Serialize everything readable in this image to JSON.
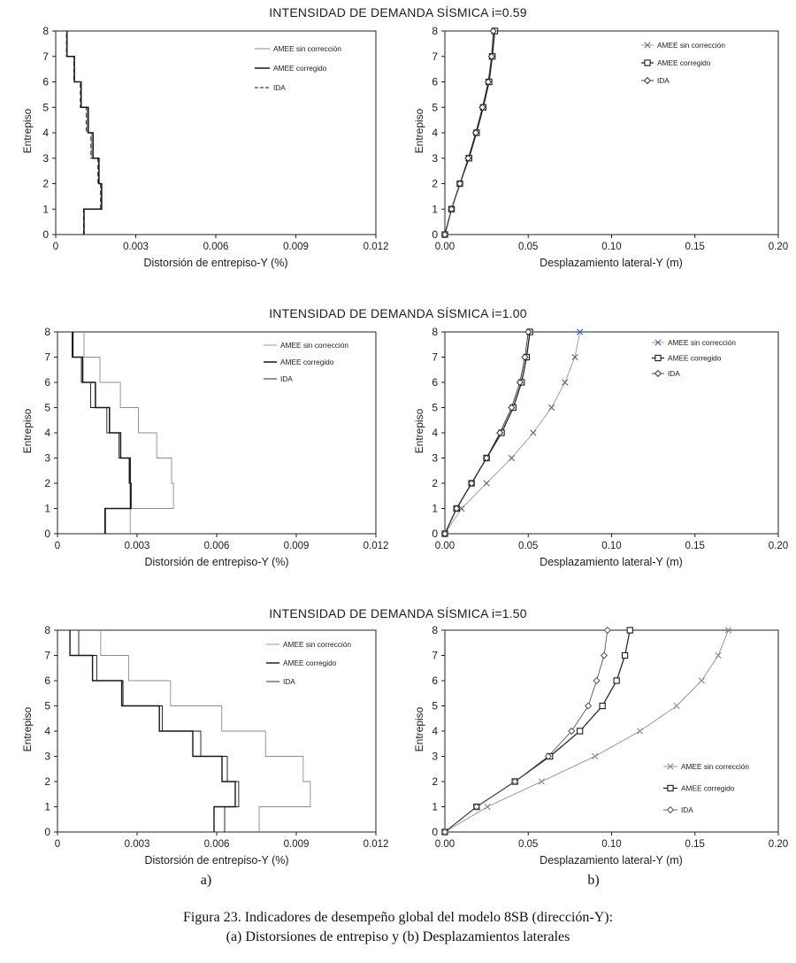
{
  "figure": {
    "panel_a_label": "a)",
    "panel_b_label": "b)",
    "caption_line1": "Figura 23. Indicadores de desempeño global del modelo 8SB (dirección-Y):",
    "caption_line2": "(a) Distorsiones de entrepiso y (b) Desplazamientos laterales"
  },
  "colors": {
    "axis": "#222222",
    "tick_text": "#1c1c1c",
    "gray_series": "#8c8c8c",
    "black_series": "#1a1a1a",
    "blue_marker": "#4a6e9e"
  },
  "chart_data": [
    {
      "id": "drift-i059",
      "type": "line",
      "variant": "step",
      "panel": "a",
      "title": "INTENSIDAD DE DEMANDA SÍSMICA i=0.59",
      "xlabel": "Distorsión de entrepiso-Y (%)",
      "ylabel": "Entrepiso",
      "xlim": [
        0,
        0.012
      ],
      "ylim": [
        0,
        8
      ],
      "xtick_values": [
        0,
        0.003,
        0.006,
        0.009,
        0.012
      ],
      "xtick_labels": [
        "0",
        "0.003",
        "0.006",
        "0.009",
        "0.012"
      ],
      "ytick_values": [
        0,
        1,
        2,
        3,
        4,
        5,
        6,
        7,
        8
      ],
      "ytick_labels": [
        "0",
        "1",
        "2",
        "3",
        "4",
        "5",
        "6",
        "7",
        "8"
      ],
      "grid": false,
      "legend_position": "upper-right",
      "levels": [
        1,
        2,
        3,
        4,
        5,
        6,
        7,
        8
      ],
      "series": [
        {
          "name": "AMEE sin corrección",
          "color": "#8c8c8c",
          "line_width": 0.9,
          "dash": null,
          "marker": null,
          "values": [
            0.00106,
            0.0017,
            0.0016,
            0.00135,
            0.00118,
            0.00095,
            0.0007,
            0.00042
          ]
        },
        {
          "name": "AMEE corregido",
          "color": "#161616",
          "line_width": 1.5,
          "dash": null,
          "marker": null,
          "values": [
            0.00106,
            0.00172,
            0.00162,
            0.0014,
            0.00122,
            0.00095,
            0.0007,
            0.00042
          ]
        },
        {
          "name": "IDA",
          "color": "#161616",
          "line_width": 0.9,
          "dash": "5,3",
          "marker": null,
          "values": [
            0.00104,
            0.00168,
            0.00158,
            0.00132,
            0.00114,
            0.00092,
            0.00068,
            0.0004
          ]
        }
      ]
    },
    {
      "id": "disp-i059",
      "type": "line",
      "variant": "markers",
      "panel": "b",
      "title": "INTENSIDAD DE DEMANDA SÍSMICA i=0.59",
      "xlabel": "Desplazamiento lateral-Y (m)",
      "ylabel": "Entrepiso",
      "xlim": [
        0,
        0.2
      ],
      "ylim": [
        0,
        8
      ],
      "xtick_values": [
        0,
        0.05,
        0.1,
        0.15,
        0.2
      ],
      "xtick_labels": [
        "0.00",
        "0.05",
        "0.10",
        "0.15",
        "0.20"
      ],
      "ytick_values": [
        0,
        1,
        2,
        3,
        4,
        5,
        6,
        7,
        8
      ],
      "ytick_labels": [
        "0",
        "1",
        "2",
        "3",
        "4",
        "5",
        "6",
        "7",
        "8"
      ],
      "grid": false,
      "legend_position": "upper-right",
      "levels": [
        0,
        1,
        2,
        3,
        4,
        5,
        6,
        7,
        8
      ],
      "series": [
        {
          "name": "AMEE sin corrección",
          "color": "#999999",
          "line_width": 0.9,
          "dash": null,
          "marker": "x",
          "marker_color": "#777777",
          "values": [
            0,
            0.004,
            0.009,
            0.014,
            0.019,
            0.023,
            0.026,
            0.028,
            0.0295
          ]
        },
        {
          "name": "AMEE corregido",
          "color": "#1a1a1a",
          "line_width": 1.2,
          "dash": null,
          "marker": "square",
          "marker_color": "#1a1a1a",
          "values": [
            0,
            0.004,
            0.009,
            0.0145,
            0.019,
            0.023,
            0.0265,
            0.0285,
            0.03
          ]
        },
        {
          "name": "IDA",
          "color": "#333333",
          "line_width": 0.9,
          "dash": null,
          "marker": "diamond",
          "marker_color": "#333333",
          "values": [
            0,
            0.004,
            0.009,
            0.014,
            0.0185,
            0.0225,
            0.026,
            0.028,
            0.029
          ]
        }
      ]
    },
    {
      "id": "drift-i100",
      "type": "line",
      "variant": "step",
      "panel": "a",
      "title": "INTENSIDAD DE DEMANDA SÍSMICA i=1.00",
      "xlabel": "Distorsión de entrepiso-Y (%)",
      "ylabel": "Entrepiso",
      "xlim": [
        0,
        0.012
      ],
      "ylim": [
        0,
        8
      ],
      "xtick_values": [
        0,
        0.003,
        0.006,
        0.009,
        0.012
      ],
      "xtick_labels": [
        "0",
        "0.003",
        "0.006",
        "0.009",
        "0.012"
      ],
      "ytick_values": [
        0,
        1,
        2,
        3,
        4,
        5,
        6,
        7,
        8
      ],
      "ytick_labels": [
        "0",
        "1",
        "2",
        "3",
        "4",
        "5",
        "6",
        "7",
        "8"
      ],
      "grid": false,
      "legend_position": "upper-right",
      "levels": [
        1,
        2,
        3,
        4,
        5,
        6,
        7,
        8
      ],
      "series": [
        {
          "name": "AMEE sin corrección",
          "color": "#8c8c8c",
          "line_width": 0.9,
          "dash": null,
          "marker": null,
          "values": [
            0.00274,
            0.00437,
            0.0043,
            0.00374,
            0.00305,
            0.00237,
            0.0016,
            0.001
          ]
        },
        {
          "name": "AMEE corregido",
          "color": "#161616",
          "line_width": 1.5,
          "dash": null,
          "marker": null,
          "values": [
            0.0018,
            0.00277,
            0.00274,
            0.00238,
            0.00196,
            0.00143,
            0.00095,
            0.00058
          ]
        },
        {
          "name": "IDA",
          "color": "#161616",
          "line_width": 0.9,
          "dash": null,
          "marker": null,
          "values": [
            0.00178,
            0.00274,
            0.0027,
            0.00232,
            0.00186,
            0.00125,
            0.0009,
            0.00055
          ]
        }
      ]
    },
    {
      "id": "disp-i100",
      "type": "line",
      "variant": "markers",
      "panel": "b",
      "title": "INTENSIDAD DE DEMANDA SÍSMICA i=1.00",
      "xlabel": "Desplazamiento lateral-Y (m)",
      "ylabel": "Entrepiso",
      "xlim": [
        0,
        0.2
      ],
      "ylim": [
        0,
        8
      ],
      "xtick_values": [
        0,
        0.05,
        0.1,
        0.15,
        0.2
      ],
      "xtick_labels": [
        "0.00",
        "0.05",
        "0.10",
        "0.15",
        "0.20"
      ],
      "ytick_values": [
        0,
        1,
        2,
        3,
        4,
        5,
        6,
        7,
        8
      ],
      "ytick_labels": [
        "0",
        "1",
        "2",
        "3",
        "4",
        "5",
        "6",
        "7",
        "8"
      ],
      "grid": false,
      "legend_position": "upper-right",
      "levels": [
        0,
        1,
        2,
        3,
        4,
        5,
        6,
        7,
        8
      ],
      "series": [
        {
          "name": "AMEE sin corrección",
          "color": "#9a9a9a",
          "line_width": 0.9,
          "dash": null,
          "marker": "x",
          "marker_color": "#4a6e9e",
          "values": [
            0,
            0.01,
            0.025,
            0.04,
            0.053,
            0.064,
            0.072,
            0.078,
            0.081
          ]
        },
        {
          "name": "AMEE corregido",
          "color": "#1a1a1a",
          "line_width": 1.3,
          "dash": null,
          "marker": "square",
          "marker_color": "#1a1a1a",
          "values": [
            0,
            0.007,
            0.016,
            0.025,
            0.034,
            0.041,
            0.046,
            0.049,
            0.051
          ]
        },
        {
          "name": "IDA",
          "color": "#333333",
          "line_width": 0.9,
          "dash": null,
          "marker": "diamond",
          "marker_color": "#333333",
          "values": [
            0,
            0.007,
            0.016,
            0.025,
            0.033,
            0.04,
            0.045,
            0.048,
            0.05
          ]
        }
      ]
    },
    {
      "id": "drift-i150",
      "type": "line",
      "variant": "step",
      "panel": "a",
      "title": "INTENSIDAD DE DEMANDA SÍSMICA i=1.50",
      "xlabel": "Distorsión de entrepiso-Y (%)",
      "ylabel": "Entrepiso",
      "xlim": [
        0,
        0.012
      ],
      "ylim": [
        0,
        8
      ],
      "xtick_values": [
        0,
        0.003,
        0.006,
        0.009,
        0.012
      ],
      "xtick_labels": [
        "0",
        "0.003",
        "0.006",
        "0.009",
        "0.012"
      ],
      "ytick_values": [
        0,
        1,
        2,
        3,
        4,
        5,
        6,
        7,
        8
      ],
      "ytick_labels": [
        "0",
        "1",
        "2",
        "3",
        "4",
        "5",
        "6",
        "7",
        "8"
      ],
      "grid": false,
      "legend_position": "upper-right",
      "levels": [
        1,
        2,
        3,
        4,
        5,
        6,
        7,
        8
      ],
      "series": [
        {
          "name": "AMEE sin corrección",
          "color": "#8c8c8c",
          "line_width": 0.9,
          "dash": null,
          "marker": null,
          "values": [
            0.0076,
            0.00953,
            0.00926,
            0.00784,
            0.00619,
            0.00426,
            0.00268,
            0.00163
          ]
        },
        {
          "name": "AMEE corregido",
          "color": "#161616",
          "line_width": 1.4,
          "dash": null,
          "marker": null,
          "values": [
            0.0059,
            0.0067,
            0.0062,
            0.0051,
            0.00384,
            0.00242,
            0.00132,
            0.00047
          ]
        },
        {
          "name": "IDA",
          "color": "#161616",
          "line_width": 0.9,
          "dash": null,
          "marker": null,
          "values": [
            0.0063,
            0.00683,
            0.0064,
            0.0054,
            0.00395,
            0.00247,
            0.00148,
            0.0008
          ]
        }
      ]
    },
    {
      "id": "disp-i150",
      "type": "line",
      "variant": "markers",
      "panel": "b",
      "title": "INTENSIDAD DE DEMANDA SÍSMICA i=1.50",
      "xlabel": "Desplazamiento lateral-Y (m)",
      "ylabel": "Entrepiso",
      "xlim": [
        0,
        0.2
      ],
      "ylim": [
        0,
        8
      ],
      "xtick_values": [
        0,
        0.05,
        0.1,
        0.15,
        0.2
      ],
      "xtick_labels": [
        "0.00",
        "0.05",
        "0.10",
        "0.15",
        "0.20"
      ],
      "ytick_values": [
        0,
        1,
        2,
        3,
        4,
        5,
        6,
        7,
        8
      ],
      "ytick_labels": [
        "0",
        "1",
        "2",
        "3",
        "4",
        "5",
        "6",
        "7",
        "8"
      ],
      "grid": false,
      "legend_position": "middle-right",
      "levels": [
        0,
        1,
        2,
        3,
        4,
        5,
        6,
        7,
        8
      ],
      "series": [
        {
          "name": "AMEE sin corrección",
          "color": "#8c8c8c",
          "line_width": 0.9,
          "dash": null,
          "marker": "x",
          "marker_color": "#8c8c8c",
          "values": [
            0,
            0.0255,
            0.058,
            0.09,
            0.117,
            0.139,
            0.154,
            0.164,
            0.17
          ]
        },
        {
          "name": "AMEE corregido",
          "color": "#1a1a1a",
          "line_width": 1.2,
          "dash": null,
          "marker": "square",
          "marker_color": "#1a1a1a",
          "values": [
            0,
            0.019,
            0.042,
            0.063,
            0.081,
            0.0945,
            0.103,
            0.108,
            0.111
          ]
        },
        {
          "name": "IDA",
          "color": "#555555",
          "line_width": 0.9,
          "dash": null,
          "marker": "diamond",
          "marker_color": "#555555",
          "values": [
            0,
            0.019,
            0.042,
            0.062,
            0.076,
            0.086,
            0.091,
            0.0955,
            0.0975
          ]
        }
      ]
    }
  ]
}
